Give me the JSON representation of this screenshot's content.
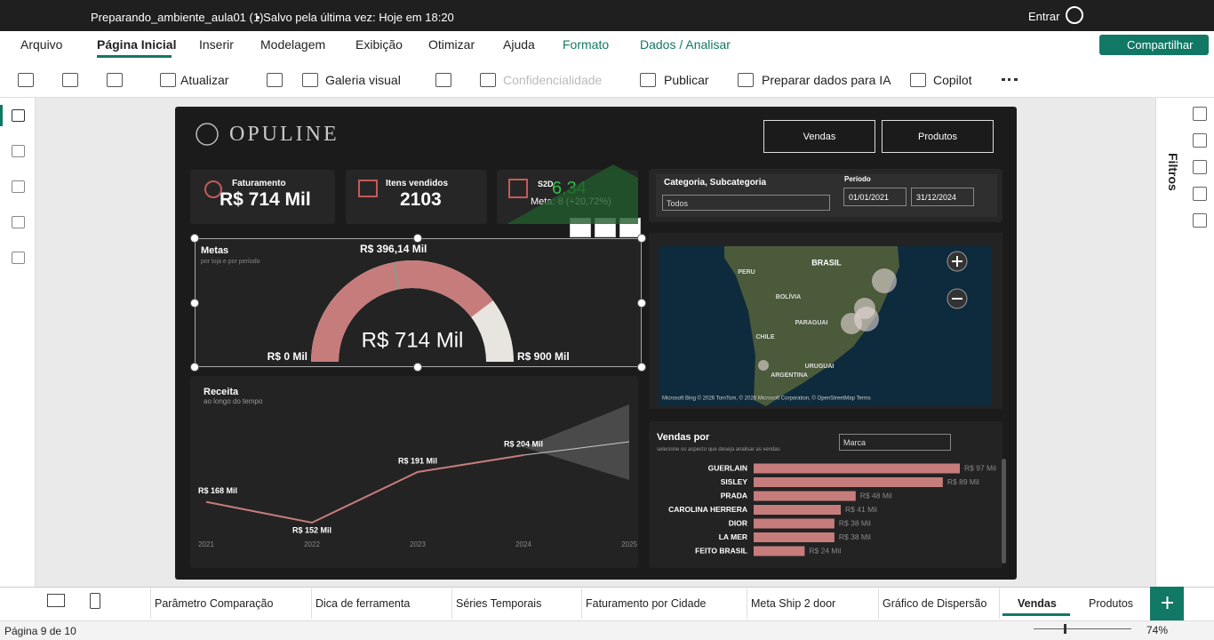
{
  "titlebar": {
    "file": "Preparando_ambiente_aula01 (1)",
    "saved": "• Salvo pela última vez: Hoje em 18:20",
    "signin": "Entrar"
  },
  "menu": [
    "Arquivo",
    "Página Inicial",
    "Inserir",
    "Modelagem",
    "Exibição",
    "Otimizar",
    "Ajuda",
    "Formato",
    "Dados / Analisar"
  ],
  "share": "Compartilhar",
  "ribbon": [
    "Atualizar",
    "Galeria visual",
    "Confidencialidade",
    "Publicar",
    "Preparar dados para IA",
    "Copilot"
  ],
  "report": {
    "logo": "OPULINE",
    "nav": [
      "Vendas",
      "Produtos"
    ],
    "kpis": [
      {
        "label": "Faturamento",
        "value": "R$ 714 Mil"
      },
      {
        "label": "Itens vendidos",
        "value": "2103"
      }
    ],
    "s2d": {
      "label": "S2D",
      "value": "6,34",
      "meta": "Meta: 8 (+20,72%)"
    },
    "filters": {
      "category_label": "Categoria, Subcategoria",
      "category_value": "Todos",
      "period_label": "Período",
      "start": "01/01/2021",
      "end": "31/12/2024"
    },
    "gauge": {
      "type": "gauge",
      "title": "Metas",
      "subtitle": "por loja e por período",
      "min": 0,
      "max": 900,
      "value": 714,
      "target": 396.14,
      "min_label": "R$ 0 Mil",
      "max_label": "R$ 900 Mil",
      "value_label": "R$ 714 Mil",
      "target_label": "R$ 396,14 Mil"
    },
    "revenue": {
      "type": "line",
      "title": "Receita",
      "subtitle": "ao longo do tempo",
      "categories": [
        "2021",
        "2022",
        "2023",
        "2024",
        "2025"
      ],
      "values": [
        168,
        152,
        191,
        204,
        null
      ],
      "value_labels": [
        "R$ 168 Mil",
        "R$ 152 Mil",
        "R$ 191 Mil",
        "R$ 204 Mil",
        null
      ],
      "color": "#c77c7c"
    },
    "map": {
      "labels": [
        "BRASIL",
        "PERU",
        "BOLÍVIA",
        "PARAGUAI",
        "CHILE",
        "URUGUAI",
        "ARGENTINA"
      ],
      "attribution": "Microsoft Bing © 2026 TomTom, © 2026 Microsoft Corporation, © OpenStreetMap Terms"
    },
    "sales_by": {
      "type": "bar",
      "title": "Vendas por",
      "subtitle": "selecione os aspecto que deseja analisar as vendas",
      "dropdown": "Marca",
      "categories": [
        "GUERLAIN",
        "SISLEY",
        "PRADA",
        "CAROLINA HERRERA",
        "DIOR",
        "LA MER",
        "FEITO BRASIL"
      ],
      "values": [
        97,
        89,
        48,
        41,
        38,
        38,
        24
      ],
      "value_labels": [
        "R$ 97 Mil",
        "R$ 89 Mil",
        "R$ 48 Mil",
        "R$ 41 Mil",
        "R$ 38 Mil",
        "R$ 38 Mil",
        "R$ 24 Mil"
      ],
      "color": "#c77c7c"
    }
  },
  "filters_pane": "Filtros",
  "pages": [
    "Parâmetro Comparação",
    "Dica de ferramenta",
    "Séries Temporais",
    "Faturamento por Cidade",
    "Meta Ship 2 door",
    "Gráfico de Dispersão",
    "Vendas",
    "Produtos"
  ],
  "status": {
    "page": "Página 9 de 10",
    "zoom": "74%"
  }
}
